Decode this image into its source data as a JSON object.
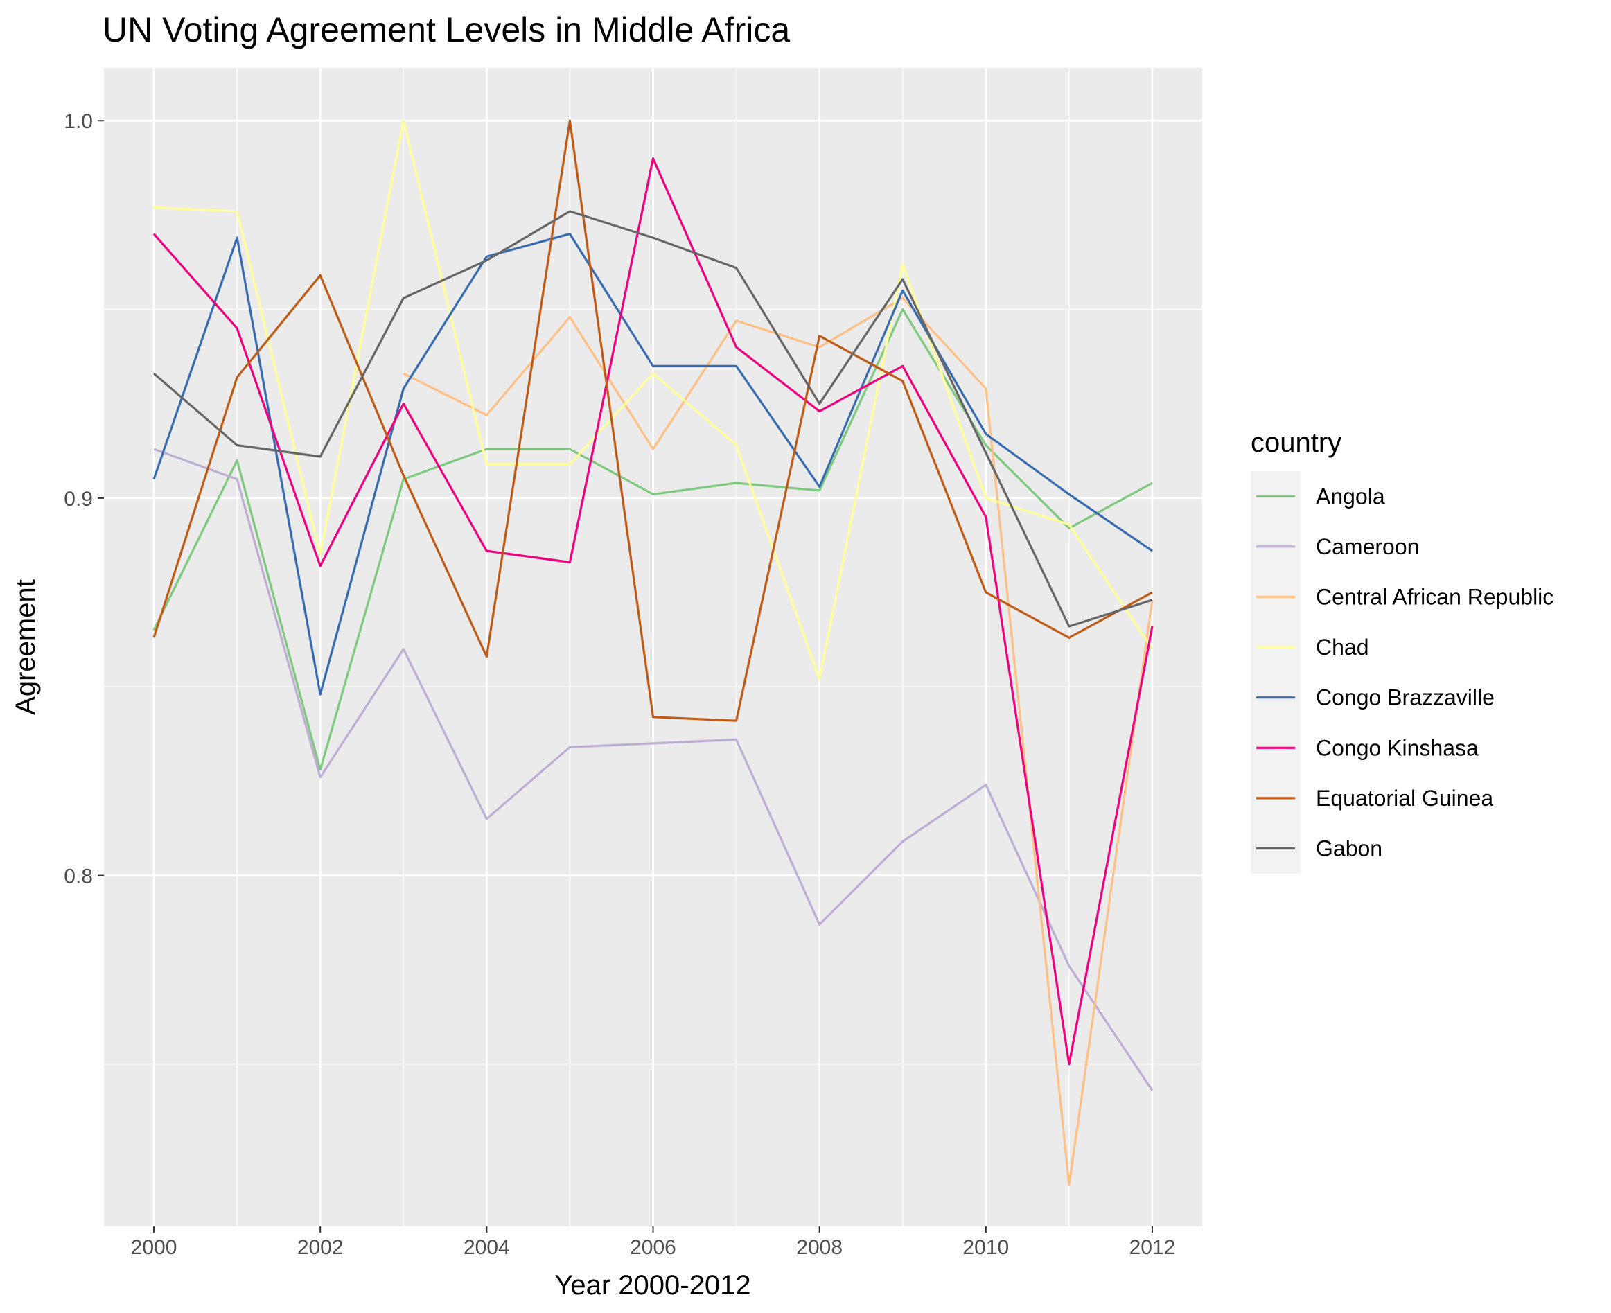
{
  "chart_data": {
    "type": "line",
    "title": "UN Voting Agreement Levels in Middle Africa",
    "xlabel": "Year 2000-2012",
    "ylabel": "Agreement",
    "xlim": [
      1999.4,
      2012.6
    ],
    "ylim": [
      0.707,
      1.014
    ],
    "x_ticks": [
      2000,
      2002,
      2004,
      2006,
      2008,
      2010,
      2012
    ],
    "x_tick_labels": [
      "2000",
      "2002",
      "2004",
      "2006",
      "2008",
      "2010",
      "2012"
    ],
    "y_ticks": [
      0.8,
      0.9,
      1.0
    ],
    "y_tick_labels": [
      "0.8",
      "0.9",
      "1.0"
    ],
    "grid": true,
    "legend_title": "country",
    "legend_position": "right",
    "x": [
      2000,
      2001,
      2002,
      2003,
      2004,
      2005,
      2006,
      2007,
      2008,
      2009,
      2010,
      2011,
      2012
    ],
    "series": [
      {
        "name": "Angola",
        "color": "#7FC97F",
        "values": [
          0.865,
          0.91,
          0.828,
          0.905,
          0.913,
          0.913,
          0.901,
          0.904,
          0.902,
          0.95,
          0.914,
          0.892,
          0.904
        ]
      },
      {
        "name": "Cameroon",
        "color": "#BEAED4",
        "values": [
          0.913,
          0.905,
          0.826,
          0.86,
          0.815,
          0.834,
          0.835,
          0.836,
          0.787,
          0.809,
          0.824,
          0.776,
          0.743
        ]
      },
      {
        "name": "Central African Republic",
        "color": "#FDC086",
        "values": [
          null,
          null,
          null,
          0.933,
          0.922,
          0.948,
          0.913,
          0.947,
          0.94,
          0.953,
          0.929,
          0.718,
          0.873
        ]
      },
      {
        "name": "Chad",
        "color": "#FFFF99",
        "values": [
          0.977,
          0.976,
          0.885,
          1.0,
          0.909,
          0.909,
          0.933,
          0.914,
          0.852,
          0.962,
          0.9,
          0.893,
          0.86
        ]
      },
      {
        "name": "Congo Brazzaville",
        "color": "#386CB0",
        "values": [
          0.905,
          0.969,
          0.848,
          0.929,
          0.964,
          0.97,
          0.935,
          0.935,
          0.903,
          0.955,
          0.917,
          0.901,
          0.886
        ]
      },
      {
        "name": "Congo Kinshasa",
        "color": "#F0027F",
        "values": [
          0.97,
          0.945,
          0.882,
          0.925,
          0.886,
          0.883,
          0.99,
          0.94,
          0.923,
          0.935,
          0.895,
          0.75,
          0.866
        ]
      },
      {
        "name": "Equatorial Guinea",
        "color": "#BF5B17",
        "values": [
          0.863,
          0.932,
          0.959,
          0.906,
          0.858,
          1.0,
          0.842,
          0.841,
          0.943,
          0.931,
          0.875,
          0.863,
          0.875
        ]
      },
      {
        "name": "Gabon",
        "color": "#666666",
        "values": [
          0.933,
          0.914,
          0.911,
          0.953,
          0.963,
          0.976,
          0.969,
          0.961,
          0.925,
          0.958,
          0.912,
          0.866,
          0.873
        ]
      }
    ]
  }
}
